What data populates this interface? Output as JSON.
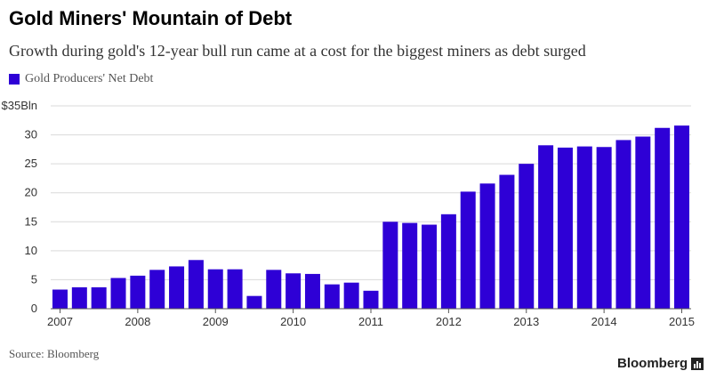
{
  "title": "Gold Miners' Mountain of Debt",
  "subtitle": "Growth during gold's 12-year bull run came at a cost for the biggest miners as debt surged",
  "source": "Source: Bloomberg",
  "brand": "Bloomberg",
  "colors": {
    "bar": "#2e00d6",
    "grid": "#d9d9d9",
    "axis": "#555555"
  },
  "icons": {
    "brand_mark": "bar-chart-icon"
  },
  "chart_data": {
    "type": "bar",
    "title": "Gold Miners' Mountain of Debt",
    "xlabel": "",
    "ylabel": "",
    "ylim": [
      0,
      35
    ],
    "y_ticks": [
      {
        "value": 0,
        "label": "0"
      },
      {
        "value": 5,
        "label": "5"
      },
      {
        "value": 10,
        "label": "10"
      },
      {
        "value": 15,
        "label": "15"
      },
      {
        "value": 20,
        "label": "20"
      },
      {
        "value": 25,
        "label": "25"
      },
      {
        "value": 30,
        "label": "30"
      },
      {
        "value": 35,
        "label": "$35Bln"
      }
    ],
    "x_ticks": [
      {
        "value": 2007.0,
        "label": "2007"
      },
      {
        "value": 2008.0,
        "label": "2008"
      },
      {
        "value": 2009.0,
        "label": "2009"
      },
      {
        "value": 2010.0,
        "label": "2010"
      },
      {
        "value": 2011.0,
        "label": "2011"
      },
      {
        "value": 2012.0,
        "label": "2012"
      },
      {
        "value": 2013.0,
        "label": "2013"
      },
      {
        "value": 2014.0,
        "label": "2014"
      },
      {
        "value": 2015.0,
        "label": "2015"
      }
    ],
    "x_range": [
      2006.88,
      2015.12
    ],
    "grid": true,
    "legend_position": "top-left",
    "series": [
      {
        "name": "Gold Producers' Net Debt",
        "x": [
          2007.0,
          2007.25,
          2007.5,
          2007.75,
          2008.0,
          2008.25,
          2008.5,
          2008.75,
          2009.0,
          2009.25,
          2009.5,
          2009.75,
          2010.0,
          2010.25,
          2010.5,
          2010.75,
          2011.0,
          2011.25,
          2011.5,
          2011.75,
          2012.0,
          2012.25,
          2012.5,
          2012.75,
          2013.0,
          2013.25,
          2013.5,
          2013.75,
          2014.0,
          2014.25,
          2014.5,
          2014.75,
          2015.0
        ],
        "values": [
          3.3,
          3.7,
          3.7,
          5.3,
          5.7,
          6.7,
          7.3,
          8.4,
          6.8,
          6.8,
          2.2,
          6.7,
          6.1,
          6.0,
          4.2,
          4.5,
          3.1,
          15.0,
          14.8,
          14.5,
          16.3,
          20.2,
          21.6,
          23.1,
          25.0,
          28.2,
          27.8,
          28.0,
          27.9,
          29.1,
          29.7,
          31.2,
          31.6
        ]
      }
    ]
  }
}
